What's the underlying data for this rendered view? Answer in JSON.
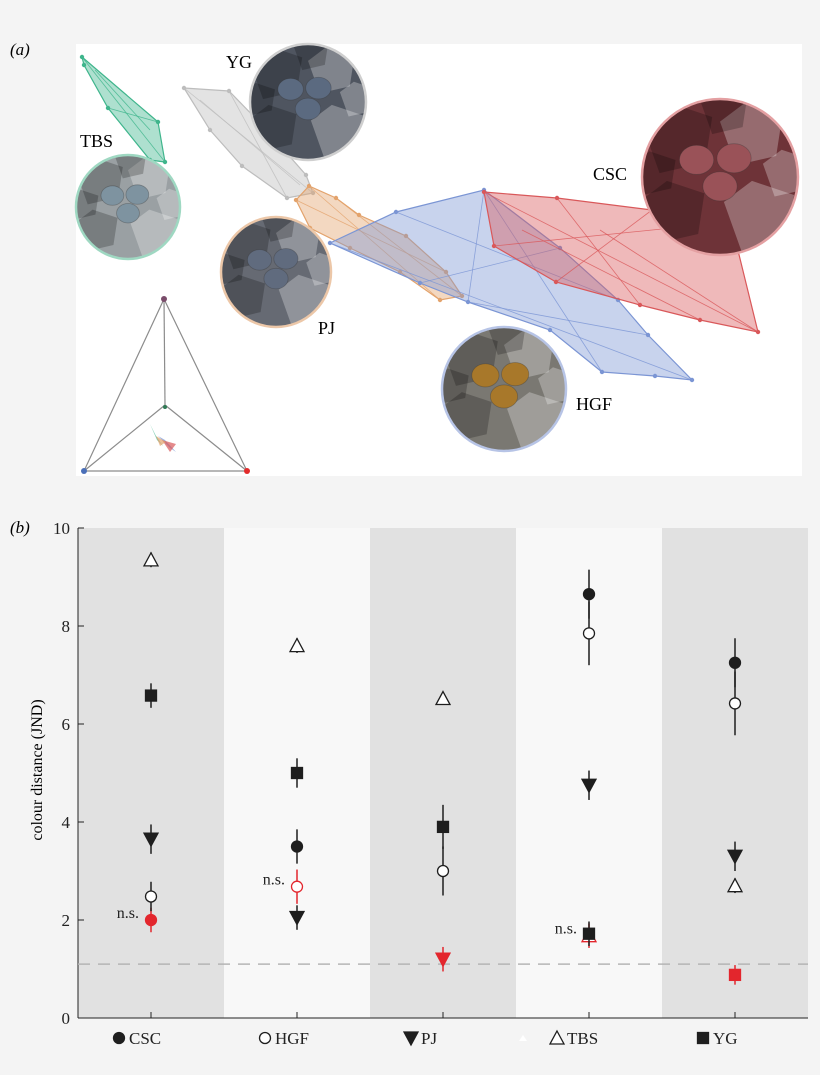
{
  "panel_a": {
    "label": "(a)",
    "populations": [
      {
        "id": "TBS",
        "label": "TBS",
        "color": "#3fb58c"
      },
      {
        "id": "YG",
        "label": "YG",
        "color": "#bdbdbd"
      },
      {
        "id": "PJ",
        "label": "PJ",
        "color": "#e3a36c"
      },
      {
        "id": "HGF",
        "label": "HGF",
        "color": "#7b95d4"
      },
      {
        "id": "CSC",
        "label": "CSC",
        "color": "#d9585a"
      }
    ],
    "photo_colors": {
      "TBS": {
        "bg": "#9aa0a3",
        "plant": "#7e93a0",
        "ring": "#9fd8c2"
      },
      "YG": {
        "bg": "#4f5560",
        "plant": "#5b6a80",
        "ring": "#cfcfcf"
      },
      "PJ": {
        "bg": "#666a73",
        "plant": "#606b7e",
        "ring": "#ecc7a8"
      },
      "HGF": {
        "bg": "#7a7872",
        "plant": "#a8782a",
        "ring": "#b7c4e6"
      },
      "CSC": {
        "bg": "#6e3338",
        "plant": "#9a5258",
        "ring": "#e4a0a2"
      }
    },
    "tetrahedron_vertex_colors": [
      "#7a4c6a",
      "#4a6fb8",
      "#e22b2b",
      "#2f7a55"
    ]
  },
  "panel_b": {
    "label": "(b)",
    "ns_label": "n.s."
  },
  "chart_data": {
    "type": "scatter",
    "title": "",
    "xlabel": "",
    "ylabel": "colour distance (JND)",
    "ylim": [
      0,
      10
    ],
    "yticks": [
      "0",
      "2",
      "4",
      "6",
      "8",
      "10"
    ],
    "threshold": 1.1,
    "categories": [
      "CSC",
      "HGF",
      "PJ",
      "TBS",
      "YG"
    ],
    "series": [
      {
        "name": "CSC",
        "marker": "filled-circle",
        "values": [
          2.0,
          3.5,
          null,
          8.65,
          7.25
        ],
        "err": [
          0.25,
          0.35,
          null,
          0.5,
          0.5
        ],
        "highlight": [
          true,
          false,
          false,
          false,
          false
        ]
      },
      {
        "name": "HGF",
        "marker": "open-circle",
        "values": [
          2.48,
          2.68,
          3.0,
          7.85,
          6.42
        ],
        "err": [
          0.3,
          0.35,
          0.5,
          0.65,
          0.65
        ],
        "highlight": [
          false,
          true,
          false,
          false,
          false
        ]
      },
      {
        "name": "PJ",
        "marker": "filled-down-triangle",
        "values": [
          3.65,
          2.05,
          1.2,
          4.75,
          3.3
        ],
        "err": [
          0.3,
          0.25,
          0.25,
          0.3,
          0.3
        ],
        "highlight": [
          false,
          false,
          true,
          false,
          false
        ]
      },
      {
        "name": "TBS",
        "marker": "open-up-triangle",
        "values": [
          9.35,
          7.6,
          6.52,
          1.68,
          2.7
        ],
        "err": [
          0.15,
          0.15,
          0.12,
          0.25,
          0.15
        ],
        "highlight": [
          false,
          false,
          false,
          true,
          false
        ]
      },
      {
        "name": "YG",
        "marker": "filled-square",
        "values": [
          6.58,
          5.0,
          3.9,
          1.72,
          0.88
        ],
        "err": [
          0.25,
          0.3,
          0.45,
          0.25,
          0.2
        ],
        "highlight": [
          false,
          false,
          false,
          false,
          true
        ]
      }
    ],
    "ns_categories": [
      0,
      1,
      3
    ],
    "band_colors": [
      "#e1e1e1",
      "#f8f8f8"
    ],
    "highlight_color": "#e3262d"
  }
}
